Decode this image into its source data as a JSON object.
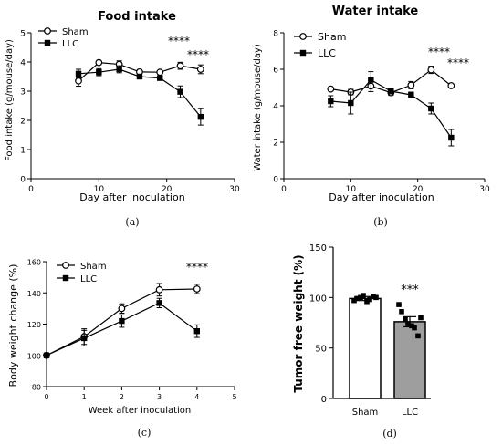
{
  "chart_data": [
    {
      "type": "line",
      "title": "Food intake",
      "xlabel": "Day after inoculation",
      "ylabel": "Food intake (g/mouse/day)",
      "xlim": [
        0,
        30
      ],
      "ylim": [
        0,
        5
      ],
      "xticks": [
        "0",
        "10",
        "20",
        "30"
      ],
      "yticks": [
        "0",
        "1",
        "2",
        "3",
        "4",
        "5"
      ],
      "legend": [
        "Sham",
        "LLC"
      ],
      "legend_position": "top-left",
      "x": [
        7,
        10,
        13,
        16,
        19,
        22,
        25
      ],
      "series": [
        {
          "name": "Sham",
          "marker": "open-circle",
          "values": [
            3.35,
            3.98,
            3.92,
            3.66,
            3.65,
            3.87,
            3.75
          ],
          "errors": [
            0.18,
            0.05,
            0.12,
            0.08,
            0.06,
            0.12,
            0.15
          ]
        },
        {
          "name": "LLC",
          "marker": "filled-square",
          "values": [
            3.6,
            3.65,
            3.75,
            3.5,
            3.45,
            2.98,
            2.12
          ],
          "errors": [
            0.15,
            0.12,
            0.12,
            0.06,
            0.06,
            0.2,
            0.28
          ]
        }
      ],
      "annotations": [
        "****",
        "****"
      ],
      "caption": "(a)"
    },
    {
      "type": "line",
      "title": "Water intake",
      "xlabel": "Day after inoculation",
      "ylabel": "Water intake (g/mouse/day)",
      "xlim": [
        0,
        30
      ],
      "ylim": [
        0,
        8
      ],
      "xticks": [
        "0",
        "10",
        "20",
        "30"
      ],
      "yticks": [
        "0",
        "2",
        "4",
        "6",
        "8"
      ],
      "legend": [
        "Sham",
        "LLC"
      ],
      "legend_position": "top-left",
      "x": [
        7,
        10,
        13,
        16,
        19,
        22,
        25
      ],
      "series": [
        {
          "name": "Sham",
          "marker": "open-circle",
          "values": [
            4.92,
            4.75,
            5.08,
            4.72,
            5.13,
            5.97,
            5.1
          ],
          "errors": [
            0.05,
            0.15,
            0.3,
            0.15,
            0.2,
            0.2,
            0.05
          ]
        },
        {
          "name": "LLC",
          "marker": "filled-square",
          "values": [
            4.25,
            4.15,
            5.42,
            4.8,
            4.6,
            3.85,
            2.25
          ],
          "errors": [
            0.3,
            0.6,
            0.45,
            0.15,
            0.15,
            0.3,
            0.45
          ]
        }
      ],
      "annotations": [
        "****",
        "****"
      ],
      "caption": "(b)"
    },
    {
      "type": "line",
      "title": "",
      "xlabel": "Week after inoculation",
      "ylabel": "Body weight change (%)",
      "xlim": [
        0,
        5
      ],
      "ylim": [
        80,
        160
      ],
      "xticks": [
        "0",
        "1",
        "2",
        "3",
        "4",
        "5"
      ],
      "yticks": [
        "80",
        "100",
        "120",
        "140",
        "160"
      ],
      "legend": [
        "Sham",
        "LLC"
      ],
      "legend_position": "top-left",
      "x": [
        0,
        1,
        2,
        3,
        4
      ],
      "series": [
        {
          "name": "Sham",
          "marker": "open-circle",
          "values": [
            100,
            112,
            130,
            142,
            142.5
          ],
          "errors": [
            0,
            5,
            3,
            4,
            3
          ]
        },
        {
          "name": "LLC",
          "marker": "filled-square",
          "values": [
            100,
            111,
            122,
            133.5,
            115.5
          ],
          "errors": [
            0,
            5,
            4,
            3,
            4
          ]
        }
      ],
      "annotations": [
        "****"
      ],
      "caption": "(c)"
    },
    {
      "type": "bar",
      "title": "",
      "xlabel": "",
      "ylabel": "Tumor free weight (%)",
      "ylim": [
        0,
        150
      ],
      "yticks": [
        "0",
        "50",
        "100",
        "150"
      ],
      "categories": [
        "Sham",
        "LLC"
      ],
      "values": [
        99,
        76
      ],
      "errors": [
        2,
        5
      ],
      "colors": [
        "#ffffff",
        "#9e9e9e"
      ],
      "points": [
        [
          97,
          99,
          100,
          102,
          96,
          98,
          101,
          100
        ],
        [
          93,
          86,
          78,
          74,
          72,
          70,
          62,
          80
        ]
      ],
      "annotations": [
        "***"
      ],
      "caption": "(d)"
    }
  ]
}
